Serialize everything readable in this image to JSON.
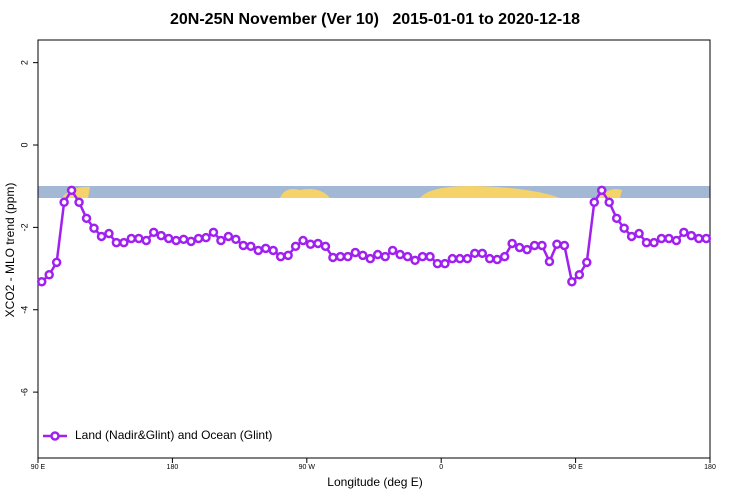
{
  "chart_data": {
    "type": "line",
    "title": "20N-25N November (Ver 10)   2015-01-01 to 2020-12-18",
    "x_label": "Longitude (deg E)",
    "y_label": "XCO2 - MLO trend (ppm)",
    "xlim": [
      90,
      540
    ],
    "xticks": [
      {
        "value": 90,
        "label": "90 E"
      },
      {
        "value": 180,
        "label": "180"
      },
      {
        "value": 270,
        "label": "90 W"
      },
      {
        "value": 360,
        "label": "0"
      },
      {
        "value": 450,
        "label": "90 E"
      },
      {
        "value": 540,
        "label": "180"
      }
    ],
    "ylim": [
      -7.6,
      2.55
    ],
    "yticks": [
      2,
      0,
      -2,
      -4,
      -6
    ],
    "legend": "bottom-left",
    "x": [
      92.5,
      97.5,
      102.5,
      107.5,
      112.5,
      117.5,
      122.5,
      127.5,
      132.5,
      137.5,
      142.5,
      147.5,
      152.5,
      157.5,
      162.5,
      167.5,
      172.5,
      177.5,
      182.5,
      187.5,
      192.5,
      197.5,
      202.5,
      207.5,
      212.5,
      217.5,
      222.5,
      227.5,
      232.5,
      237.5,
      242.5,
      247.5,
      252.5,
      257.5,
      262.5,
      267.5,
      272.5,
      277.5,
      282.5,
      287.5,
      292.5,
      297.5,
      302.5,
      307.5,
      312.5,
      317.5,
      322.5,
      327.5,
      332.5,
      337.5,
      342.5,
      347.5,
      352.5,
      357.5,
      362.5,
      367.5,
      372.5,
      377.5,
      382.5,
      387.5,
      392.5,
      397.5,
      402.5,
      407.5,
      412.5,
      417.5,
      422.5,
      427.5,
      432.5,
      437.5,
      442.5,
      447.5,
      452.5,
      457.5,
      462.5,
      467.5,
      472.5,
      477.5,
      482.5,
      487.5,
      492.5,
      497.5,
      502.5,
      507.5,
      512.5,
      517.5,
      522.5,
      527.5,
      532.5,
      537.5
    ],
    "series": [
      {
        "name": "Land (Nadir&Glint) and Ocean (Glint)",
        "color": "#a020f0",
        "values": [
          -3.32,
          -3.15,
          -2.85,
          -1.39,
          -1.1,
          -1.39,
          -1.78,
          -2.02,
          -2.22,
          -2.15,
          -2.37,
          -2.37,
          -2.27,
          -2.27,
          -2.32,
          -2.12,
          -2.2,
          -2.27,
          -2.32,
          -2.29,
          -2.34,
          -2.27,
          -2.25,
          -2.12,
          -2.32,
          -2.22,
          -2.29,
          -2.44,
          -2.46,
          -2.56,
          -2.51,
          -2.56,
          -2.71,
          -2.68,
          -2.46,
          -2.32,
          -2.41,
          -2.39,
          -2.46,
          -2.73,
          -2.71,
          -2.71,
          -2.61,
          -2.68,
          -2.76,
          -2.66,
          -2.71,
          -2.56,
          -2.66,
          -2.71,
          -2.8,
          -2.71,
          -2.71,
          -2.88,
          -2.88,
          -2.76,
          -2.76,
          -2.76,
          -2.63,
          -2.63,
          -2.76,
          -2.78,
          -2.71,
          -2.39,
          -2.49,
          -2.54,
          -2.44,
          -2.44,
          -2.83,
          -2.41,
          -2.44,
          -3.32,
          -3.15,
          -2.85,
          -1.39,
          -1.1,
          -1.39,
          -1.78,
          -2.02,
          -2.22,
          -2.15,
          -2.37,
          -2.37,
          -2.27,
          -2.27,
          -2.32,
          -2.12,
          -2.2,
          -2.27,
          -2.27
        ]
      }
    ]
  }
}
